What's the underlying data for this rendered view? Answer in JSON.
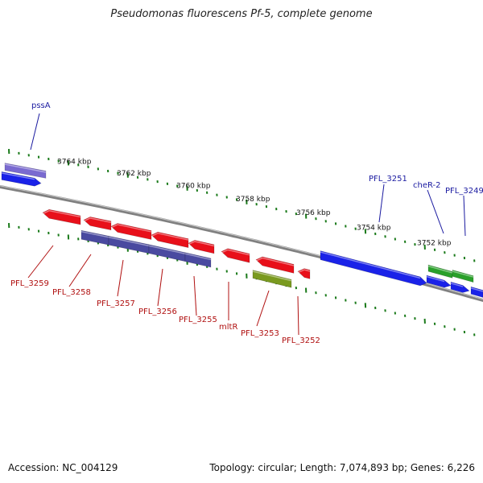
{
  "title": "Pseudomonas fluorescens Pf-5, complete genome",
  "footer": {
    "accession": "Accession: NC_004129",
    "summary": "Topology: circular; Length: 7,074,893 bp; Genes: 6,226"
  },
  "colors": {
    "backbone": "#808080",
    "tick": "#1a7a1a",
    "red_gene": "#e8101a",
    "blue_gene": "#1a22e8",
    "slate_gene": "#4a4aa0",
    "violet_gene": "#7a6ad0",
    "green_gene": "#2aa02a",
    "olive_gene": "#7a9a20",
    "label_blue": "#1a1aa0",
    "label_red": "#b01010"
  },
  "kbp_labels": [
    "3764 kbp",
    "3762 kbp",
    "3760 kbp",
    "3758 kbp",
    "3756 kbp",
    "3754 kbp",
    "3752 kbp"
  ],
  "top_gene_labels": [
    "pssA",
    "PFL_3251",
    "cheR-2",
    "PFL_3249"
  ],
  "bottom_gene_labels": [
    "PFL_3259",
    "PFL_3258",
    "PFL_3257",
    "PFL_3256",
    "PFL_3255",
    "mltR",
    "PFL_3253",
    "PFL_3252"
  ]
}
